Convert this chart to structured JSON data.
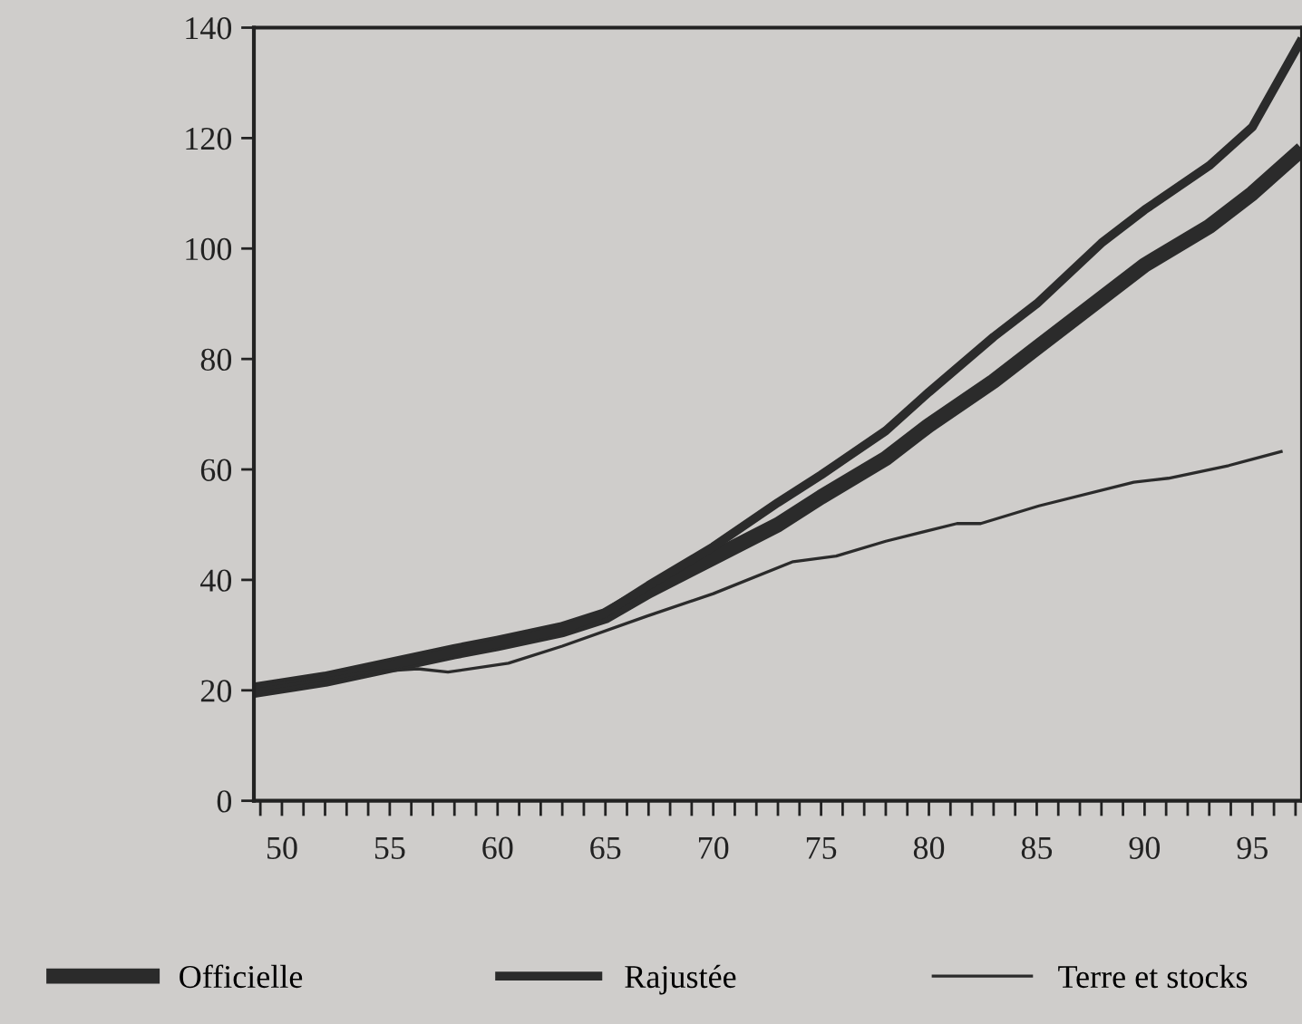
{
  "chart_data": {
    "type": "line",
    "xlim": [
      48.7,
      97.3
    ],
    "ylim": [
      0,
      140
    ],
    "xticks": [
      {
        "value": 49,
        "label": null
      },
      50,
      {
        "value": 51,
        "label": null
      },
      {
        "value": 52,
        "label": null
      },
      {
        "value": 53,
        "label": null
      },
      {
        "value": 54,
        "label": null
      },
      55,
      {
        "value": 56,
        "label": null
      },
      {
        "value": 57,
        "label": null
      },
      {
        "value": 58,
        "label": null
      },
      {
        "value": 59,
        "label": null
      },
      60,
      {
        "value": 61,
        "label": null
      },
      {
        "value": 62,
        "label": null
      },
      {
        "value": 63,
        "label": null
      },
      {
        "value": 64,
        "label": null
      },
      65,
      {
        "value": 66,
        "label": null
      },
      {
        "value": 67,
        "label": null
      },
      {
        "value": 68,
        "label": null
      },
      {
        "value": 69,
        "label": null
      },
      70,
      {
        "value": 71,
        "label": null
      },
      {
        "value": 72,
        "label": null
      },
      {
        "value": 73,
        "label": null
      },
      {
        "value": 74,
        "label": null
      },
      75,
      {
        "value": 76,
        "label": null
      },
      {
        "value": 77,
        "label": null
      },
      {
        "value": 78,
        "label": null
      },
      {
        "value": 79,
        "label": null
      },
      80,
      {
        "value": 81,
        "label": null
      },
      {
        "value": 82,
        "label": null
      },
      {
        "value": 83,
        "label": null
      },
      {
        "value": 84,
        "label": null
      },
      85,
      {
        "value": 86,
        "label": null
      },
      {
        "value": 87,
        "label": null
      },
      {
        "value": 88,
        "label": null
      },
      {
        "value": 89,
        "label": null
      },
      90,
      {
        "value": 91,
        "label": null
      },
      {
        "value": 92,
        "label": null
      },
      {
        "value": 93,
        "label": null
      },
      {
        "value": 94,
        "label": null
      },
      95,
      {
        "value": 96,
        "label": null
      },
      {
        "value": 97,
        "label": null
      }
    ],
    "yticks": [
      0,
      20,
      40,
      60,
      80,
      100,
      120,
      140
    ],
    "grid": false,
    "legend": "bottom",
    "marker": "none",
    "line_style": "solid",
    "series": [
      {
        "name": "Officielle",
        "color": "#2b2b2b",
        "x": [
          48.7,
          52,
          55,
          58,
          60,
          63,
          65,
          67,
          70,
          73,
          75,
          78,
          80,
          83,
          85,
          88,
          90,
          93,
          95,
          97.3
        ],
        "values": [
          20,
          22,
          24.5,
          27,
          28.5,
          31,
          33.5,
          38,
          44,
          50,
          55,
          62,
          68,
          76,
          82,
          91,
          97,
          104,
          110,
          118
        ]
      },
      {
        "name": "Rajustée",
        "color": "#2b2b2b",
        "x": [
          48.7,
          52,
          55,
          58,
          60,
          63,
          65,
          67,
          70,
          73,
          75,
          78,
          80,
          83,
          85,
          88,
          90,
          93,
          95,
          97.3
        ],
        "values": [
          20,
          22,
          24.5,
          27,
          28.5,
          31,
          34,
          39,
          46,
          54,
          59,
          67,
          74,
          84,
          90,
          101,
          107,
          115,
          122,
          138
        ]
      },
      {
        "name": "Terre et stocks",
        "color": "#2b2b2b",
        "x": [
          48.7,
          52,
          54,
          56.3,
          57.7,
          60.5,
          63,
          66.9,
          70,
          73.7,
          75.7,
          78,
          81.3,
          82.4,
          85.1,
          89.5,
          91.1,
          93.9,
          96.4
        ],
        "values": [
          20,
          22,
          23.3,
          23.9,
          23.3,
          24.9,
          28,
          33.4,
          37.5,
          43.3,
          44.3,
          47,
          50.2,
          50.2,
          53.4,
          57.7,
          58.4,
          60.7,
          63.3
        ]
      }
    ]
  }
}
